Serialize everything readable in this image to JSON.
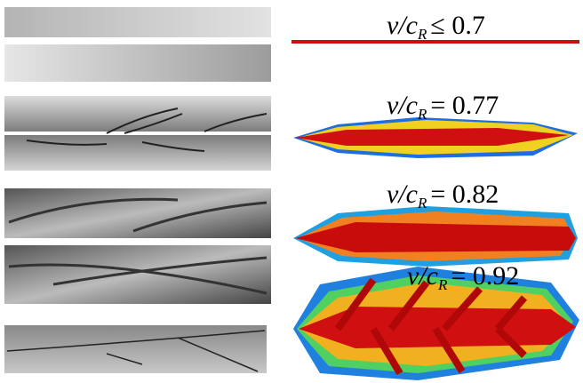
{
  "panels": [
    {
      "variable": "v/c",
      "subscript": "R",
      "relation": "≤ 0.7"
    },
    {
      "variable": "v/c",
      "subscript": "R",
      "relation": "= 0.77"
    },
    {
      "variable": "v/c",
      "subscript": "R",
      "relation": "= 0.82"
    },
    {
      "variable": "v/c",
      "subscript": "R",
      "relation": "= 0.92"
    }
  ]
}
